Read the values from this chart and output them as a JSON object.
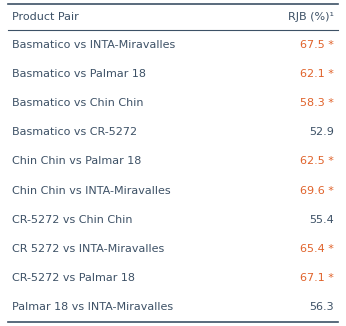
{
  "col1_header": "Product Pair",
  "col2_header": "RJB (%)¹",
  "rows": [
    {
      "pair": "Basmatico vs INTA-Miravalles",
      "value": "67.5",
      "significant": true
    },
    {
      "pair": "Basmatico vs Palmar 18",
      "value": "62.1",
      "significant": true
    },
    {
      "pair": "Basmatico vs Chin Chin",
      "value": "58.3",
      "significant": true
    },
    {
      "pair": "Basmatico vs CR-5272",
      "value": "52.9",
      "significant": false
    },
    {
      "pair": "Chin Chin vs Palmar 18",
      "value": "62.5",
      "significant": true
    },
    {
      "pair": "Chin Chin vs INTA-Miravalles",
      "value": "69.6",
      "significant": true
    },
    {
      "pair": "CR-5272 vs Chin Chin",
      "value": "55.4",
      "significant": false
    },
    {
      "pair": "CR 5272 vs INTA-Miravalles",
      "value": "65.4",
      "significant": true
    },
    {
      "pair": "CR-5272 vs Palmar 18",
      "value": "67.1",
      "significant": true
    },
    {
      "pair": "Palmar 18 vs INTA-Miravalles",
      "value": "56.3",
      "significant": false
    }
  ],
  "bg_color": "#ffffff",
  "header_text_color": "#3d5166",
  "row_text_color": "#3d5166",
  "sig_color": "#e0622a",
  "line_color": "#3d5166",
  "font_size": 8.0,
  "header_font_size": 8.0
}
